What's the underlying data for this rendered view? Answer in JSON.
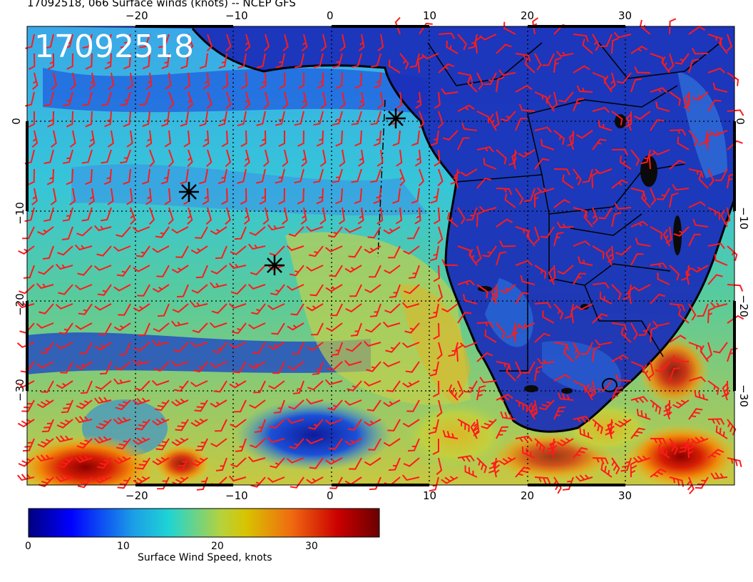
{
  "title": "17092518, 066 Surface winds (knots) -- NCEP GFS",
  "map_stamp": "17092518",
  "colorbar": {
    "title": "Surface Wind Speed, knots",
    "ticks": [
      "0",
      "10",
      "20",
      "30"
    ],
    "range": [
      0,
      37
    ]
  },
  "axes": {
    "x_ticks_top": [
      "−20",
      "−10",
      "0",
      "10",
      "20",
      "30"
    ],
    "x_ticks_bottom": [
      "−20",
      "−10",
      "0",
      "10",
      "20",
      "30"
    ],
    "y_ticks_left": [
      "0",
      "−10",
      "−20",
      "−30"
    ],
    "y_ticks_right": [
      "0",
      "−10",
      "−20",
      "−30"
    ]
  },
  "storm_markers": [
    "marker-1",
    "marker-2",
    "marker-3"
  ],
  "colors": {
    "barb": "#ff1a1a",
    "land_outline": "#000000",
    "low_speed": "#0a1aa0",
    "high_speed": "#8b0000"
  }
}
